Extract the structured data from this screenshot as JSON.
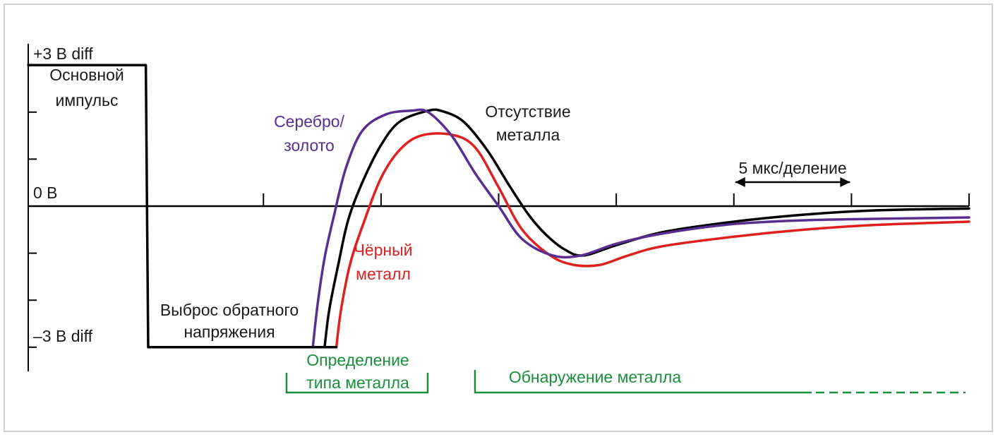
{
  "chart_data": {
    "type": "line",
    "title": "",
    "xlabel": "",
    "ylabel": "",
    "x_unit": "мкс",
    "y_unit": "В",
    "xlim": [
      0,
      40
    ],
    "ylim": [
      -3.5,
      3.5
    ],
    "y_tick_values": [
      3,
      2,
      1,
      0,
      -1,
      -2,
      -3
    ],
    "y_tick_labels": {
      "top": "+3 В diff",
      "zero": "0 В",
      "bottom": "–3 В diff"
    },
    "x_tick_values": [
      10,
      15,
      20,
      25,
      30,
      35,
      40
    ],
    "scale_marker": {
      "label": "5 мкс/деление",
      "from": 30,
      "to": 35
    },
    "series": [
      {
        "key": "pulse",
        "color": "#000000",
        "points": [
          [
            0,
            3
          ],
          [
            5,
            3
          ],
          [
            5.1,
            -3
          ],
          [
            13.1,
            -3
          ]
        ]
      },
      {
        "key": "silver",
        "name": "Серебро/\nзолото",
        "color": "#5a2d91",
        "points": [
          [
            12.1,
            -3
          ],
          [
            12.3,
            -2.1
          ],
          [
            12.6,
            -1.1
          ],
          [
            13.0,
            -0.2
          ],
          [
            13.5,
            0.8
          ],
          [
            14.2,
            1.6
          ],
          [
            15.2,
            1.95
          ],
          [
            16.3,
            2.03
          ],
          [
            17.0,
            2.0
          ],
          [
            18.0,
            1.5
          ],
          [
            19.0,
            0.7
          ],
          [
            20.0,
            0
          ],
          [
            21.0,
            -0.7
          ],
          [
            22.3,
            -1.05
          ],
          [
            23.5,
            -1.05
          ],
          [
            25.0,
            -0.8
          ],
          [
            27.0,
            -0.58
          ],
          [
            30.0,
            -0.38
          ],
          [
            33.0,
            -0.3
          ],
          [
            36.0,
            -0.27
          ],
          [
            40.0,
            -0.24
          ]
        ]
      },
      {
        "key": "none",
        "name": "Отсутствие\nметалла",
        "color": "#000000",
        "points": [
          [
            12.6,
            -3
          ],
          [
            12.8,
            -2.2
          ],
          [
            13.2,
            -1.2
          ],
          [
            13.6,
            -0.3
          ],
          [
            14.2,
            0.5
          ],
          [
            15.0,
            1.3
          ],
          [
            15.8,
            1.8
          ],
          [
            17.0,
            2.03
          ],
          [
            17.6,
            2.02
          ],
          [
            18.5,
            1.8
          ],
          [
            19.5,
            1.2
          ],
          [
            20.5,
            0.4
          ],
          [
            21.3,
            -0.2
          ],
          [
            22.0,
            -0.6
          ],
          [
            22.8,
            -0.92
          ],
          [
            23.6,
            -1.05
          ],
          [
            25.0,
            -0.83
          ],
          [
            27.0,
            -0.55
          ],
          [
            30.0,
            -0.33
          ],
          [
            33.0,
            -0.18
          ],
          [
            36.0,
            -0.09
          ],
          [
            40.0,
            -0.05
          ]
        ]
      },
      {
        "key": "ferrous",
        "name": "Чёрный\nметалл",
        "color": "#e0201e",
        "points": [
          [
            13.1,
            -3
          ],
          [
            13.3,
            -2.2
          ],
          [
            13.7,
            -1.2
          ],
          [
            14.3,
            -0.3
          ],
          [
            15.0,
            0.6
          ],
          [
            15.8,
            1.2
          ],
          [
            16.7,
            1.5
          ],
          [
            18.0,
            1.52
          ],
          [
            19.0,
            1.25
          ],
          [
            20.0,
            0.4
          ],
          [
            21.0,
            -0.5
          ],
          [
            22.2,
            -1.05
          ],
          [
            23.2,
            -1.25
          ],
          [
            24.3,
            -1.25
          ],
          [
            25.5,
            -1.05
          ],
          [
            27.0,
            -0.85
          ],
          [
            30.0,
            -0.65
          ],
          [
            33.0,
            -0.5
          ],
          [
            36.0,
            -0.4
          ],
          [
            40.0,
            -0.33
          ]
        ]
      }
    ],
    "annotations": [
      {
        "key": "main",
        "lines": [
          "Основной",
          "импульс"
        ],
        "color": "#1a1a1a"
      },
      {
        "key": "silver",
        "lines": [
          "Серебро/",
          "золото"
        ],
        "color": "#5a2d91"
      },
      {
        "key": "none",
        "lines": [
          "Отсутствие",
          "металла"
        ],
        "color": "#1a1a1a"
      },
      {
        "key": "ferrous",
        "lines": [
          "Чёрный",
          "металл"
        ],
        "color": "#e0201e"
      },
      {
        "key": "flyback",
        "lines": [
          "Выброс обратного",
          "напряжения"
        ],
        "color": "#1a1a1a"
      },
      {
        "key": "typedet",
        "lines": [
          "Определение",
          "типа металла"
        ],
        "color": "#1a8f3c"
      },
      {
        "key": "metaldet",
        "lines": [
          "Обнаружение металла"
        ],
        "color": "#1a8f3c"
      }
    ],
    "phases": [
      {
        "key": "typedet",
        "from": 11,
        "to": 17
      },
      {
        "key": "metaldet",
        "from": 19,
        "to": 40,
        "dashed_from": 33.5
      }
    ]
  }
}
